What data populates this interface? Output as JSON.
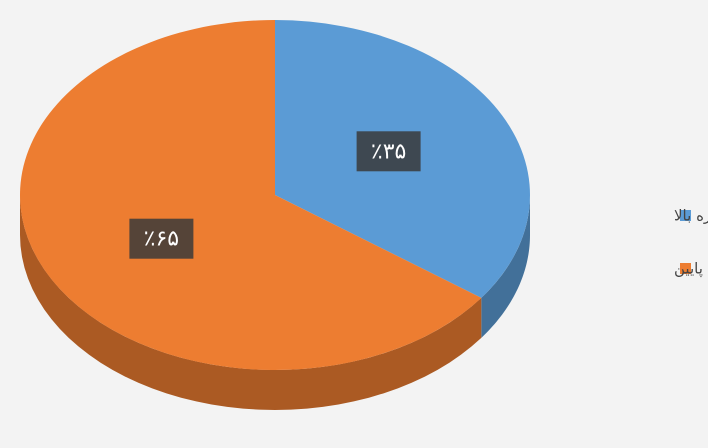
{
  "chart_data": {
    "type": "pie",
    "categories": [
      "استعاره بالا",
      "استعاره پایین"
    ],
    "values": [
      35,
      65
    ],
    "value_labels": [
      "٪۳۵",
      "٪۶۵"
    ],
    "colors": [
      "#5b9bd5",
      "#ed7d31"
    ],
    "legend": "right"
  }
}
